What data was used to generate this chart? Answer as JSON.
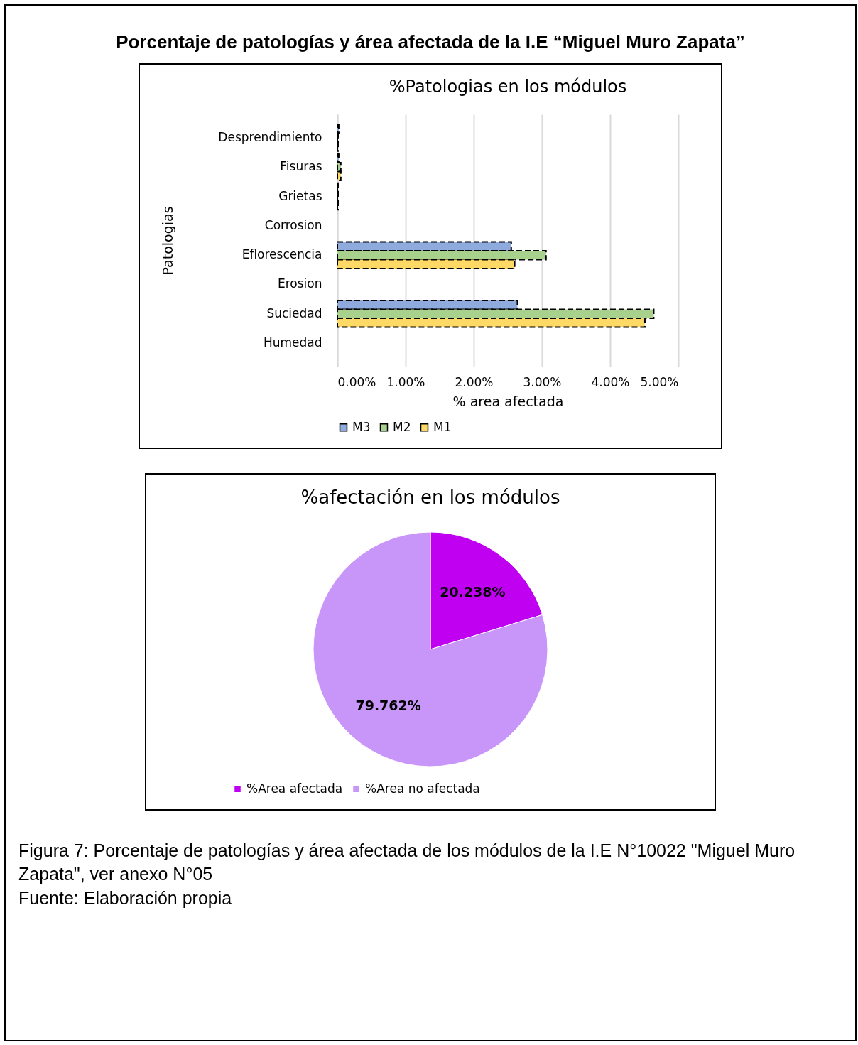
{
  "chart_data": [
    {
      "type": "bar",
      "orientation": "horizontal",
      "title": "%Patologias en los módulos",
      "xlabel": "% area afectada",
      "ylabel": "Patologias",
      "annotations": [
        "Porcentaje de patologías y área afectada de la I.E “Miguel Muro Zapata”"
      ],
      "categories": [
        "Desprendimiento",
        "Fisuras",
        "Grietas",
        "Corrosion",
        "Eflorescencia",
        "Erosion",
        "Suciedad",
        "Humedad"
      ],
      "series": [
        {
          "name": "M3",
          "color": "#8faadc",
          "values": [
            0.02,
            0.02,
            0.01,
            null,
            2.55,
            null,
            2.64,
            null
          ]
        },
        {
          "name": "M2",
          "color": "#a9d18e",
          "values": [
            0.01,
            0.05,
            0.01,
            null,
            3.06,
            null,
            4.64,
            null
          ]
        },
        {
          "name": "M1",
          "color": "#ffd966",
          "values": [
            0.01,
            0.05,
            0.01,
            null,
            2.6,
            null,
            4.51,
            null
          ]
        }
      ],
      "xlim": [
        0,
        5
      ],
      "xticks": [
        {
          "value": 0,
          "label": "0.00%"
        },
        {
          "value": 1,
          "label": "1.00%"
        },
        {
          "value": 2,
          "label": "2.00%"
        },
        {
          "value": 3,
          "label": "3.00%"
        },
        {
          "value": 4,
          "label": "4.00%"
        },
        {
          "value": 5,
          "label": "5.00%"
        }
      ],
      "grid": "x",
      "legend": "bottom",
      "line_style": "dashed"
    },
    {
      "type": "pie",
      "title": "%afectación en los módulos",
      "annotations": [
        "Figura 7: Porcentaje de patologías y área afectada de los módulos de la I.E N°10022 \"Miguel Muro Zapata\", ver anexo N°05",
        "Fuente: Elaboración propia"
      ],
      "categories": [
        "%Area afectada",
        "%Area no afectada"
      ],
      "values": [
        20.238,
        79.762
      ],
      "colors": [
        "#c000f0",
        "#c896f8"
      ],
      "value_labels": [
        "20.238%",
        "79.762%"
      ],
      "legend": "bottom"
    }
  ]
}
